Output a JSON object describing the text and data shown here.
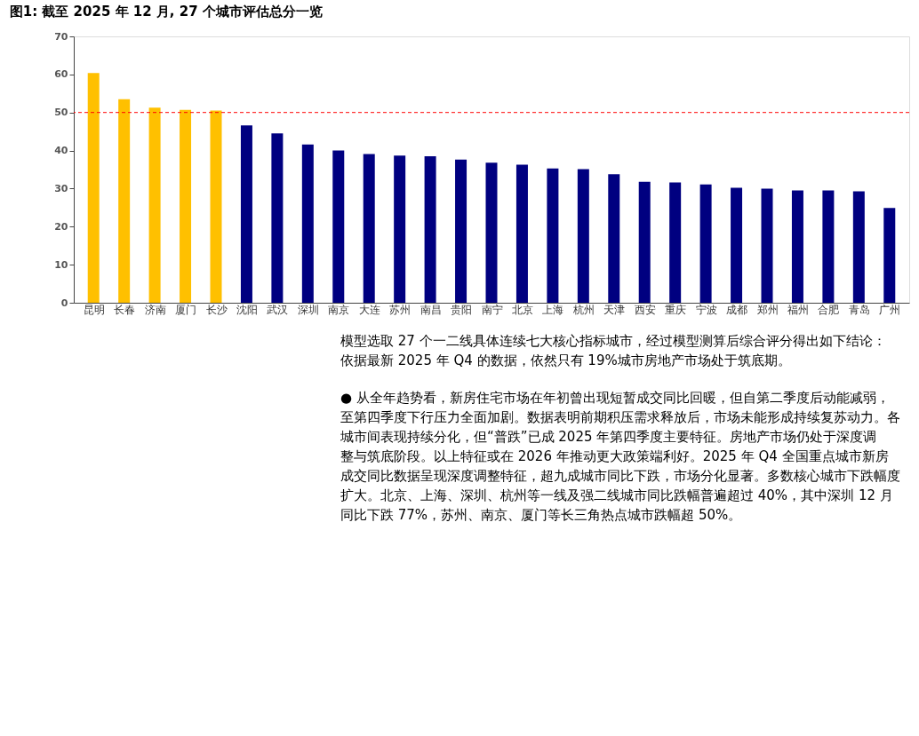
{
  "chart_data": {
    "type": "bar",
    "title": "图1: 截至 2025 年 12 月, 27 个城市评估总分一览",
    "categories": [
      "昆明",
      "长春",
      "济南",
      "厦门",
      "长沙",
      "沈阳",
      "武汉",
      "深圳",
      "南京",
      "大连",
      "苏州",
      "南昌",
      "贵阳",
      "南宁",
      "北京",
      "上海",
      "杭州",
      "天津",
      "西安",
      "重庆",
      "宁波",
      "成都",
      "郑州",
      "福州",
      "合肥",
      "青岛",
      "广州"
    ],
    "values": [
      60.4,
      53.5,
      51.3,
      50.7,
      50.5,
      46.6,
      44.5,
      41.6,
      40.0,
      39.1,
      38.7,
      38.5,
      37.6,
      36.8,
      36.3,
      35.3,
      35.1,
      33.8,
      31.8,
      31.6,
      31.1,
      30.2,
      30.0,
      29.5,
      29.5,
      29.3,
      24.9
    ],
    "colors": [
      "#ffc000",
      "#ffc000",
      "#ffc000",
      "#ffc000",
      "#ffc000",
      "#000080",
      "#000080",
      "#000080",
      "#000080",
      "#000080",
      "#000080",
      "#000080",
      "#000080",
      "#000080",
      "#000080",
      "#000080",
      "#000080",
      "#000080",
      "#000080",
      "#000080",
      "#000080",
      "#000080",
      "#000080",
      "#000080",
      "#000080",
      "#000080",
      "#000080"
    ],
    "ylim": [
      0,
      70
    ],
    "yticks": [
      0,
      10,
      20,
      30,
      40,
      50,
      60,
      70
    ],
    "grid": false,
    "ref_lines": [
      {
        "axis": "y",
        "value": 50,
        "color": "#ff0000",
        "line_style": "dashed"
      }
    ],
    "annotations": [
      "模型选取 27 个一二线具体连续七大核心指标城市，经过模型测算后综合评分得出如下结论：依据最新 2025 年 Q4 的数据，依然只有 19%城市房地产市场处于筑底期。",
      "● 从全年趋势看，新房住宅市场在年初曾出现短暂成交同比回暖，但自第二季度后动能减弱，至第四季度下行压力全面加剧。数据表明前期积压需求释放后，市场未能形成持续复苏动力。各城市间表现持续分化，但“普跌”已成 2025 年第四季度主要特征。房地产市场仍处于深度调整与筑底阶段。以上特征或在 2026 年推动更大政策端利好。2025 年 Q4 全国重点城市新房成交同比数据呈现深度调整特征，超九成城市同比下跌，市场分化显著。多数核心城市下跌幅度扩大。北京、上海、深圳、杭州等一线及强二线城市同比跌幅普遍超过 40%，其中深圳 12 月同比下跌 77%，苏州、南京、厦门等长三角热点城市跌幅超 50%。"
    ]
  }
}
